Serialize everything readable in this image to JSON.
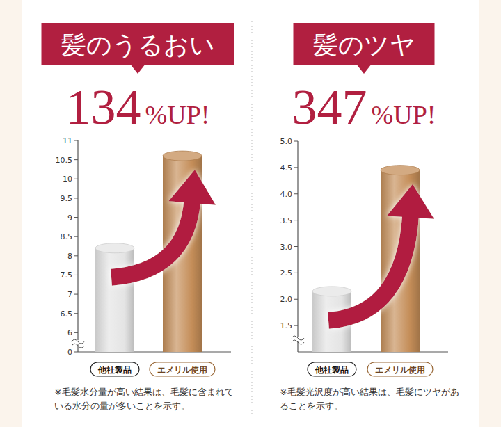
{
  "chart_data": [
    {
      "type": "bar",
      "title": "髪のうるおい",
      "subtitle": "134%UP!",
      "categories": [
        "他社製品",
        "エメリル使用"
      ],
      "values": [
        8.2,
        10.6
      ],
      "colors": [
        "#e4e4e4",
        "#c48d58"
      ],
      "ylim": [
        0,
        11
      ],
      "yticks": [
        0,
        6,
        6.5,
        7,
        7.5,
        8,
        8.5,
        9,
        9.5,
        10,
        10.5,
        11
      ],
      "note": "※毛髪水分量が高い結果は、毛髪に含まれている水分の量が多いことを示す。"
    },
    {
      "type": "bar",
      "title": "髪のツヤ",
      "subtitle": "347%UP!",
      "categories": [
        "他社製品",
        "エメリル使用"
      ],
      "values": [
        2.15,
        4.45
      ],
      "colors": [
        "#e4e4e4",
        "#c48d58"
      ],
      "ylim": [
        0,
        5
      ],
      "yticks": [
        1.5,
        {
          "value": 2,
          "label": "2.0"
        },
        2.5,
        {
          "value": 3,
          "label": "3.0"
        },
        3.5,
        {
          "value": 4,
          "label": "4.0"
        },
        4.5,
        {
          "value": 5,
          "label": "5.0"
        }
      ],
      "note": "※毛髪光沢度が高い結果は、毛髪にツヤがあることを示す。"
    }
  ]
}
